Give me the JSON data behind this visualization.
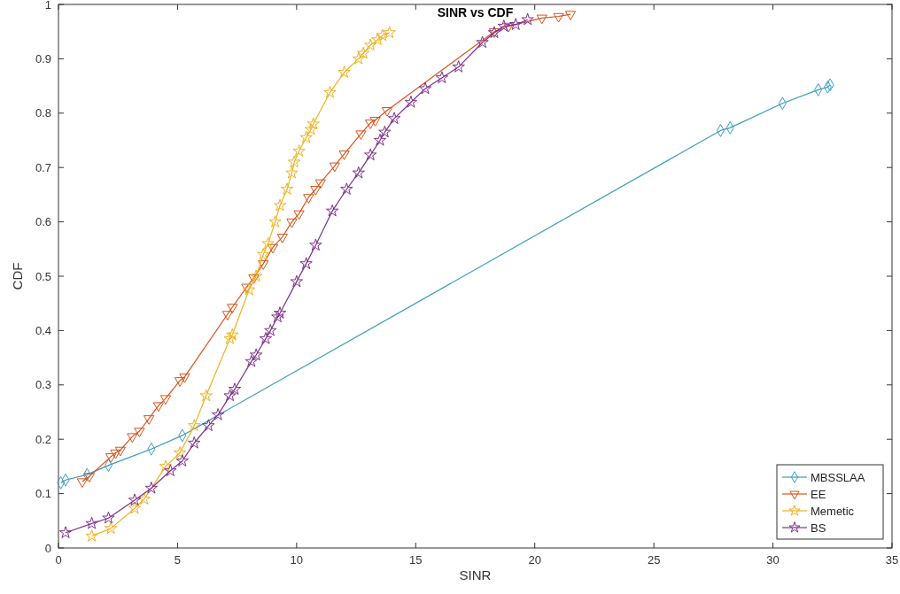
{
  "chart_data": {
    "type": "line",
    "title": "SINR vs CDF",
    "xlabel": "SINR",
    "ylabel": "CDF",
    "xlim": [
      0,
      35
    ],
    "xticks": [
      0,
      5,
      10,
      15,
      20,
      25,
      30,
      35
    ],
    "ylim": [
      0,
      1
    ],
    "yticks": [
      0,
      0.1,
      0.2,
      0.3,
      0.4,
      0.5,
      0.6,
      0.7,
      0.8,
      0.9,
      1
    ],
    "grid": false,
    "legend": "bottom right",
    "series": [
      {
        "name": "MBSSLAA",
        "color": "#3a9bbf",
        "marker": "diamond",
        "x": [
          0.1,
          0.3,
          1.2,
          2.1,
          3.9,
          5.2,
          27.8,
          28.2,
          30.4,
          31.9,
          32.3,
          32.4
        ],
        "values": [
          0.12,
          0.125,
          0.135,
          0.152,
          0.182,
          0.207,
          0.768,
          0.773,
          0.818,
          0.843,
          0.848,
          0.852
        ]
      },
      {
        "name": "EE",
        "color": "#d95319",
        "marker": "triangle",
        "x": [
          1.0,
          1.3,
          2.2,
          2.4,
          2.6,
          3.1,
          3.4,
          3.8,
          4.2,
          4.5,
          5.1,
          5.3,
          7.1,
          7.3,
          7.9,
          8.2,
          8.6,
          9.0,
          9.4,
          9.8,
          10.1,
          10.5,
          10.8,
          11.0,
          11.6,
          12.0,
          12.7,
          13.1,
          13.3,
          13.8,
          18.3,
          18.9,
          20.3,
          21.0,
          21.5
        ],
        "values": [
          0.122,
          0.132,
          0.168,
          0.175,
          0.18,
          0.205,
          0.215,
          0.238,
          0.262,
          0.275,
          0.308,
          0.315,
          0.43,
          0.443,
          0.48,
          0.497,
          0.523,
          0.553,
          0.572,
          0.6,
          0.615,
          0.645,
          0.66,
          0.672,
          0.703,
          0.725,
          0.762,
          0.782,
          0.787,
          0.805,
          0.95,
          0.96,
          0.975,
          0.978,
          0.982
        ]
      },
      {
        "name": "Memetic",
        "color": "#edb120",
        "marker": "star",
        "x": [
          1.4,
          2.2,
          3.2,
          3.6,
          4.5,
          5.1,
          5.7,
          6.2,
          7.2,
          7.3,
          8.0,
          8.3,
          8.6,
          8.8,
          9.1,
          9.3,
          9.6,
          9.8,
          9.9,
          10.1,
          10.4,
          10.6,
          10.7,
          11.4,
          12.0,
          12.6,
          12.8,
          13.1,
          13.4,
          13.6,
          13.9
        ],
        "values": [
          0.022,
          0.036,
          0.073,
          0.09,
          0.15,
          0.175,
          0.225,
          0.28,
          0.385,
          0.392,
          0.475,
          0.5,
          0.54,
          0.56,
          0.6,
          0.63,
          0.66,
          0.69,
          0.71,
          0.73,
          0.755,
          0.77,
          0.78,
          0.838,
          0.875,
          0.9,
          0.91,
          0.925,
          0.935,
          0.943,
          0.948
        ]
      },
      {
        "name": "BS",
        "color": "#7e2f8e",
        "marker": "star",
        "x": [
          0.3,
          1.4,
          2.1,
          3.2,
          3.9,
          4.7,
          5.2,
          5.7,
          6.3,
          6.7,
          7.2,
          7.4,
          8.1,
          8.3,
          8.7,
          8.9,
          9.2,
          9.3,
          10.0,
          10.4,
          10.8,
          11.5,
          12.1,
          12.6,
          13.1,
          13.5,
          13.7,
          14.1,
          14.8,
          15.4,
          16.1,
          16.8,
          17.8,
          18.3,
          18.7,
          19.2,
          19.7
        ],
        "values": [
          0.028,
          0.045,
          0.055,
          0.088,
          0.11,
          0.142,
          0.16,
          0.193,
          0.225,
          0.245,
          0.28,
          0.292,
          0.343,
          0.355,
          0.385,
          0.4,
          0.425,
          0.432,
          0.49,
          0.523,
          0.557,
          0.62,
          0.66,
          0.69,
          0.723,
          0.75,
          0.765,
          0.79,
          0.82,
          0.845,
          0.865,
          0.885,
          0.93,
          0.948,
          0.96,
          0.963,
          0.972
        ]
      }
    ]
  }
}
